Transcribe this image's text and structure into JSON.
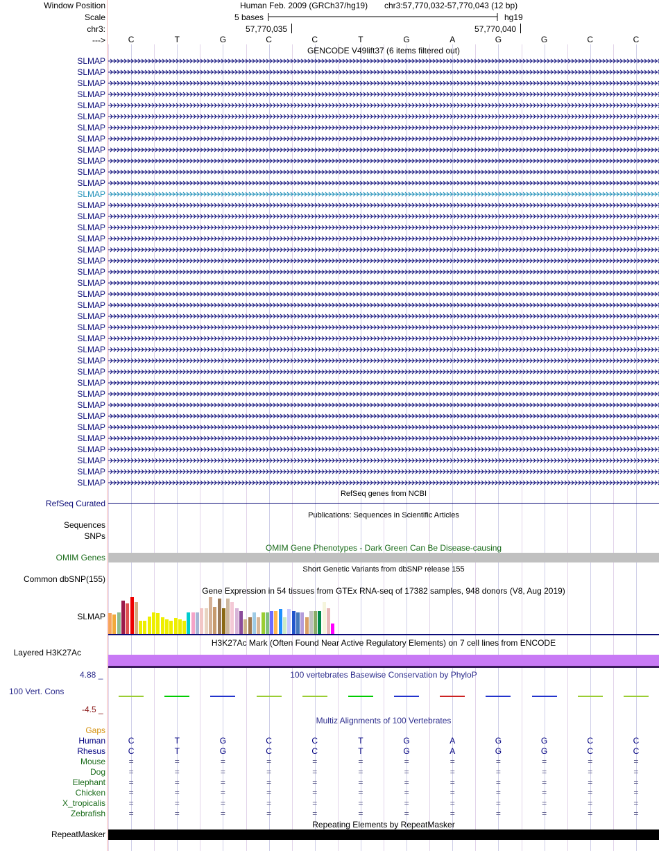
{
  "header": {
    "window_position_label": "Window Position",
    "assembly": "Human Feb. 2009 (GRCh37/hg19)",
    "position": "chr3:57,770,032-57,770,043 (12 bp)",
    "scale_label": "Scale",
    "scale_text": "5 bases",
    "db": "hg19",
    "chrom_label": "chr3:",
    "coord1": "57,770,035",
    "coord2": "57,770,040",
    "strand_label": "--->"
  },
  "sequence": [
    "C",
    "T",
    "G",
    "C",
    "C",
    "T",
    "G",
    "A",
    "G",
    "G",
    "C",
    "C"
  ],
  "gencode": {
    "title": "GENCODE V49lift37 (6 items filtered out)",
    "gene_name": "SLMAP",
    "row_count": 39,
    "highlight_row": 12,
    "color": "#0c0c78",
    "highlight_color": "#1f8fb8"
  },
  "refseq": {
    "title": "RefSeq genes from NCBI",
    "label": "RefSeq Curated"
  },
  "publications": {
    "title": "Publications: Sequences in Scientific Articles",
    "label1": "Sequences",
    "label2": "SNPs"
  },
  "omim": {
    "title": "OMIM Gene Phenotypes - Dark Green Can Be Disease-causing",
    "label": "OMIM Genes",
    "color": "#1a6b1a"
  },
  "dbsnp": {
    "title": "Short Genetic Variants from dbSNP release 155",
    "label": "Common dbSNP(155)"
  },
  "gtex": {
    "title": "Gene Expression in 54 tissues from GTEx RNA-seq of 17382 samples, 948 donors (V8, Aug 2019)",
    "label": "SLMAP",
    "bars": [
      {
        "v": 0.55,
        "c": "#f7a35c"
      },
      {
        "v": 0.52,
        "c": "#f2a93b"
      },
      {
        "v": 0.58,
        "c": "#8fbc8f"
      },
      {
        "v": 0.88,
        "c": "#9b1b4b"
      },
      {
        "v": 0.82,
        "c": "#e05050"
      },
      {
        "v": 0.98,
        "c": "#ee0000"
      },
      {
        "v": 0.86,
        "c": "#d4a97f"
      },
      {
        "v": 0.35,
        "c": "#eeee00"
      },
      {
        "v": 0.36,
        "c": "#eeee00"
      },
      {
        "v": 0.46,
        "c": "#eeee00"
      },
      {
        "v": 0.58,
        "c": "#eeee00"
      },
      {
        "v": 0.55,
        "c": "#eeee00"
      },
      {
        "v": 0.45,
        "c": "#eeee00"
      },
      {
        "v": 0.38,
        "c": "#eeee00"
      },
      {
        "v": 0.36,
        "c": "#eeee00"
      },
      {
        "v": 0.42,
        "c": "#eeee00"
      },
      {
        "v": 0.38,
        "c": "#eeee00"
      },
      {
        "v": 0.35,
        "c": "#eeee00"
      },
      {
        "v": 0.58,
        "c": "#00cdcd"
      },
      {
        "v": 0.58,
        "c": "#f5a3c8"
      },
      {
        "v": 0.58,
        "c": "#a6b5d6"
      },
      {
        "v": 0.68,
        "c": "#f2c6c6"
      },
      {
        "v": 0.68,
        "c": "#e8d3c0"
      },
      {
        "v": 0.98,
        "c": "#d4b096"
      },
      {
        "v": 0.72,
        "c": "#c69a6e"
      },
      {
        "v": 0.94,
        "c": "#9b7a5a"
      },
      {
        "v": 0.68,
        "c": "#8b6914"
      },
      {
        "v": 0.94,
        "c": "#cdb79e"
      },
      {
        "v": 0.86,
        "c": "#f4c9d6"
      },
      {
        "v": 0.68,
        "c": "#d8b4d8"
      },
      {
        "v": 0.62,
        "c": "#8b4c9b"
      },
      {
        "v": 0.38,
        "c": "#cdb38b"
      },
      {
        "v": 0.45,
        "c": "#a07850"
      },
      {
        "v": 0.58,
        "c": "#9ecbe5"
      },
      {
        "v": 0.45,
        "c": "#d9b89a"
      },
      {
        "v": 0.57,
        "c": "#9acd32"
      },
      {
        "v": 0.58,
        "c": "#7ec07e"
      },
      {
        "v": 0.62,
        "c": "#6c6cff"
      },
      {
        "v": 0.62,
        "c": "#ffb84d"
      },
      {
        "v": 0.66,
        "c": "#1e90ff"
      },
      {
        "v": 0.45,
        "c": "#ccebc5"
      },
      {
        "v": 0.66,
        "c": "#c9c9ff"
      },
      {
        "v": 0.62,
        "c": "#2255cc"
      },
      {
        "v": 0.58,
        "c": "#4477bb"
      },
      {
        "v": 0.58,
        "c": "#b39ddb"
      },
      {
        "v": 0.45,
        "c": "#d9a066"
      },
      {
        "v": 0.62,
        "c": "#c0c0c0"
      },
      {
        "v": 0.62,
        "c": "#88aa66"
      },
      {
        "v": 0.62,
        "c": "#00884a"
      },
      {
        "v": 0.86,
        "c": "#f5f5dc"
      },
      {
        "v": 0.68,
        "c": "#e6b8b8"
      },
      {
        "v": 0.28,
        "c": "#ff00ff"
      },
      {
        "v": 0.0,
        "c": "#dddddd"
      },
      {
        "v": 0.0,
        "c": "#dddddd"
      }
    ]
  },
  "h3k27ac": {
    "title": "H3K27Ac Mark (Often Found Near Active Regulatory Elements) on 7 cell lines from ENCODE",
    "label": "Layered H3K27Ac",
    "color": "#c87af5"
  },
  "phylop": {
    "title": "100 vertebrates Basewise Conservation by PhyloP",
    "label": "100 Vert. Cons",
    "max": "4.88 _",
    "min": "-4.5 _",
    "colors": [
      "#9acd32",
      "#00cc00",
      "#2233cc",
      "#9acd32",
      "#9acd32",
      "#00cc00",
      "#2233cc",
      "#cc2222",
      "#2233cc",
      "#2233cc",
      "#9acd32",
      "#9acd32"
    ]
  },
  "multiz": {
    "title": "Multiz Alignments of 100 Vertebrates",
    "gaps_label": "Gaps",
    "species": [
      {
        "name": "Human",
        "color": "#000080",
        "bases": [
          "C",
          "T",
          "G",
          "C",
          "C",
          "T",
          "G",
          "A",
          "G",
          "G",
          "C",
          "C"
        ]
      },
      {
        "name": "Rhesus",
        "color": "#000080",
        "bases": [
          "C",
          "T",
          "G",
          "C",
          "C",
          "T",
          "G",
          "A",
          "G",
          "G",
          "C",
          "C"
        ]
      },
      {
        "name": "Mouse",
        "color": "#1a6b1a",
        "bases": [
          "=",
          "=",
          "=",
          "=",
          "=",
          "=",
          "=",
          "=",
          "=",
          "=",
          "=",
          "="
        ]
      },
      {
        "name": "Dog",
        "color": "#1a6b1a",
        "bases": [
          "=",
          "=",
          "=",
          "=",
          "=",
          "=",
          "=",
          "=",
          "=",
          "=",
          "=",
          "="
        ]
      },
      {
        "name": "Elephant",
        "color": "#1a6b1a",
        "bases": [
          "=",
          "=",
          "=",
          "=",
          "=",
          "=",
          "=",
          "=",
          "=",
          "=",
          "=",
          "="
        ]
      },
      {
        "name": "Chicken",
        "color": "#1a6b1a",
        "bases": [
          "=",
          "=",
          "=",
          "=",
          "=",
          "=",
          "=",
          "=",
          "=",
          "=",
          "=",
          "="
        ]
      },
      {
        "name": "X_tropicalis",
        "color": "#1a6b1a",
        "bases": [
          "=",
          "=",
          "=",
          "=",
          "=",
          "=",
          "=",
          "=",
          "=",
          "=",
          "=",
          "="
        ]
      },
      {
        "name": "Zebrafish",
        "color": "#1a6b1a",
        "bases": [
          "=",
          "=",
          "=",
          "=",
          "=",
          "=",
          "=",
          "=",
          "=",
          "=",
          "=",
          "="
        ]
      }
    ]
  },
  "repeatmasker": {
    "title": "Repeating Elements by RepeatMasker",
    "label": "RepeatMasker"
  }
}
